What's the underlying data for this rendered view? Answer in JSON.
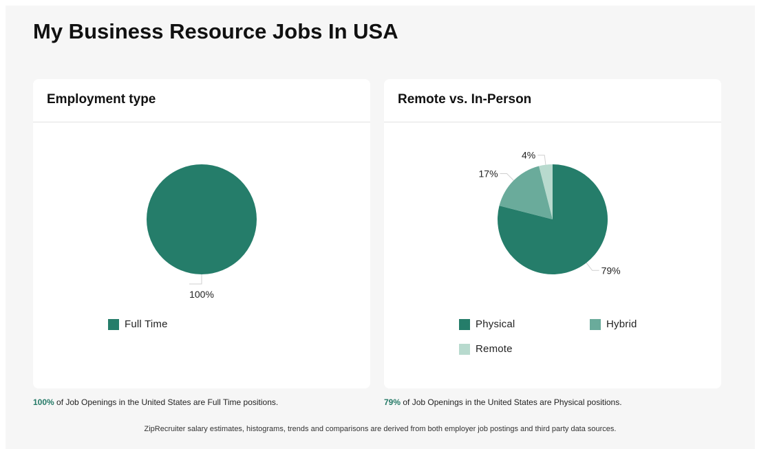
{
  "page": {
    "title": "My Business Resource Jobs In USA",
    "disclaimer": "ZipRecruiter salary estimates, histograms, trends and comparisons are derived from both employer job postings and third party data sources."
  },
  "colors": {
    "physical": "#257d6a",
    "hybrid": "#6aab9b",
    "remote": "#b8dace",
    "accent_text": "#257a67"
  },
  "cards": {
    "employment": {
      "title": "Employment type",
      "footnote": {
        "pct": "100%",
        "text": " of Job Openings in the United States are Full Time positions."
      }
    },
    "remote": {
      "title": "Remote vs. In-Person",
      "footnote": {
        "pct": "79%",
        "text": " of Job Openings in the United States are Physical positions."
      }
    }
  },
  "chart_data": [
    {
      "type": "pie",
      "title": "Employment type",
      "slices": [
        {
          "label": "Full Time",
          "value": 100,
          "display": "100%",
          "color": "#257d6a"
        }
      ],
      "legend_position": "bottom"
    },
    {
      "type": "pie",
      "title": "Remote vs. In-Person",
      "slices": [
        {
          "label": "Physical",
          "value": 79,
          "display": "79%",
          "color": "#257d6a"
        },
        {
          "label": "Hybrid",
          "value": 17,
          "display": "17%",
          "color": "#6aab9b"
        },
        {
          "label": "Remote",
          "value": 4,
          "display": "4%",
          "color": "#b8dace"
        }
      ],
      "legend_position": "bottom"
    }
  ]
}
